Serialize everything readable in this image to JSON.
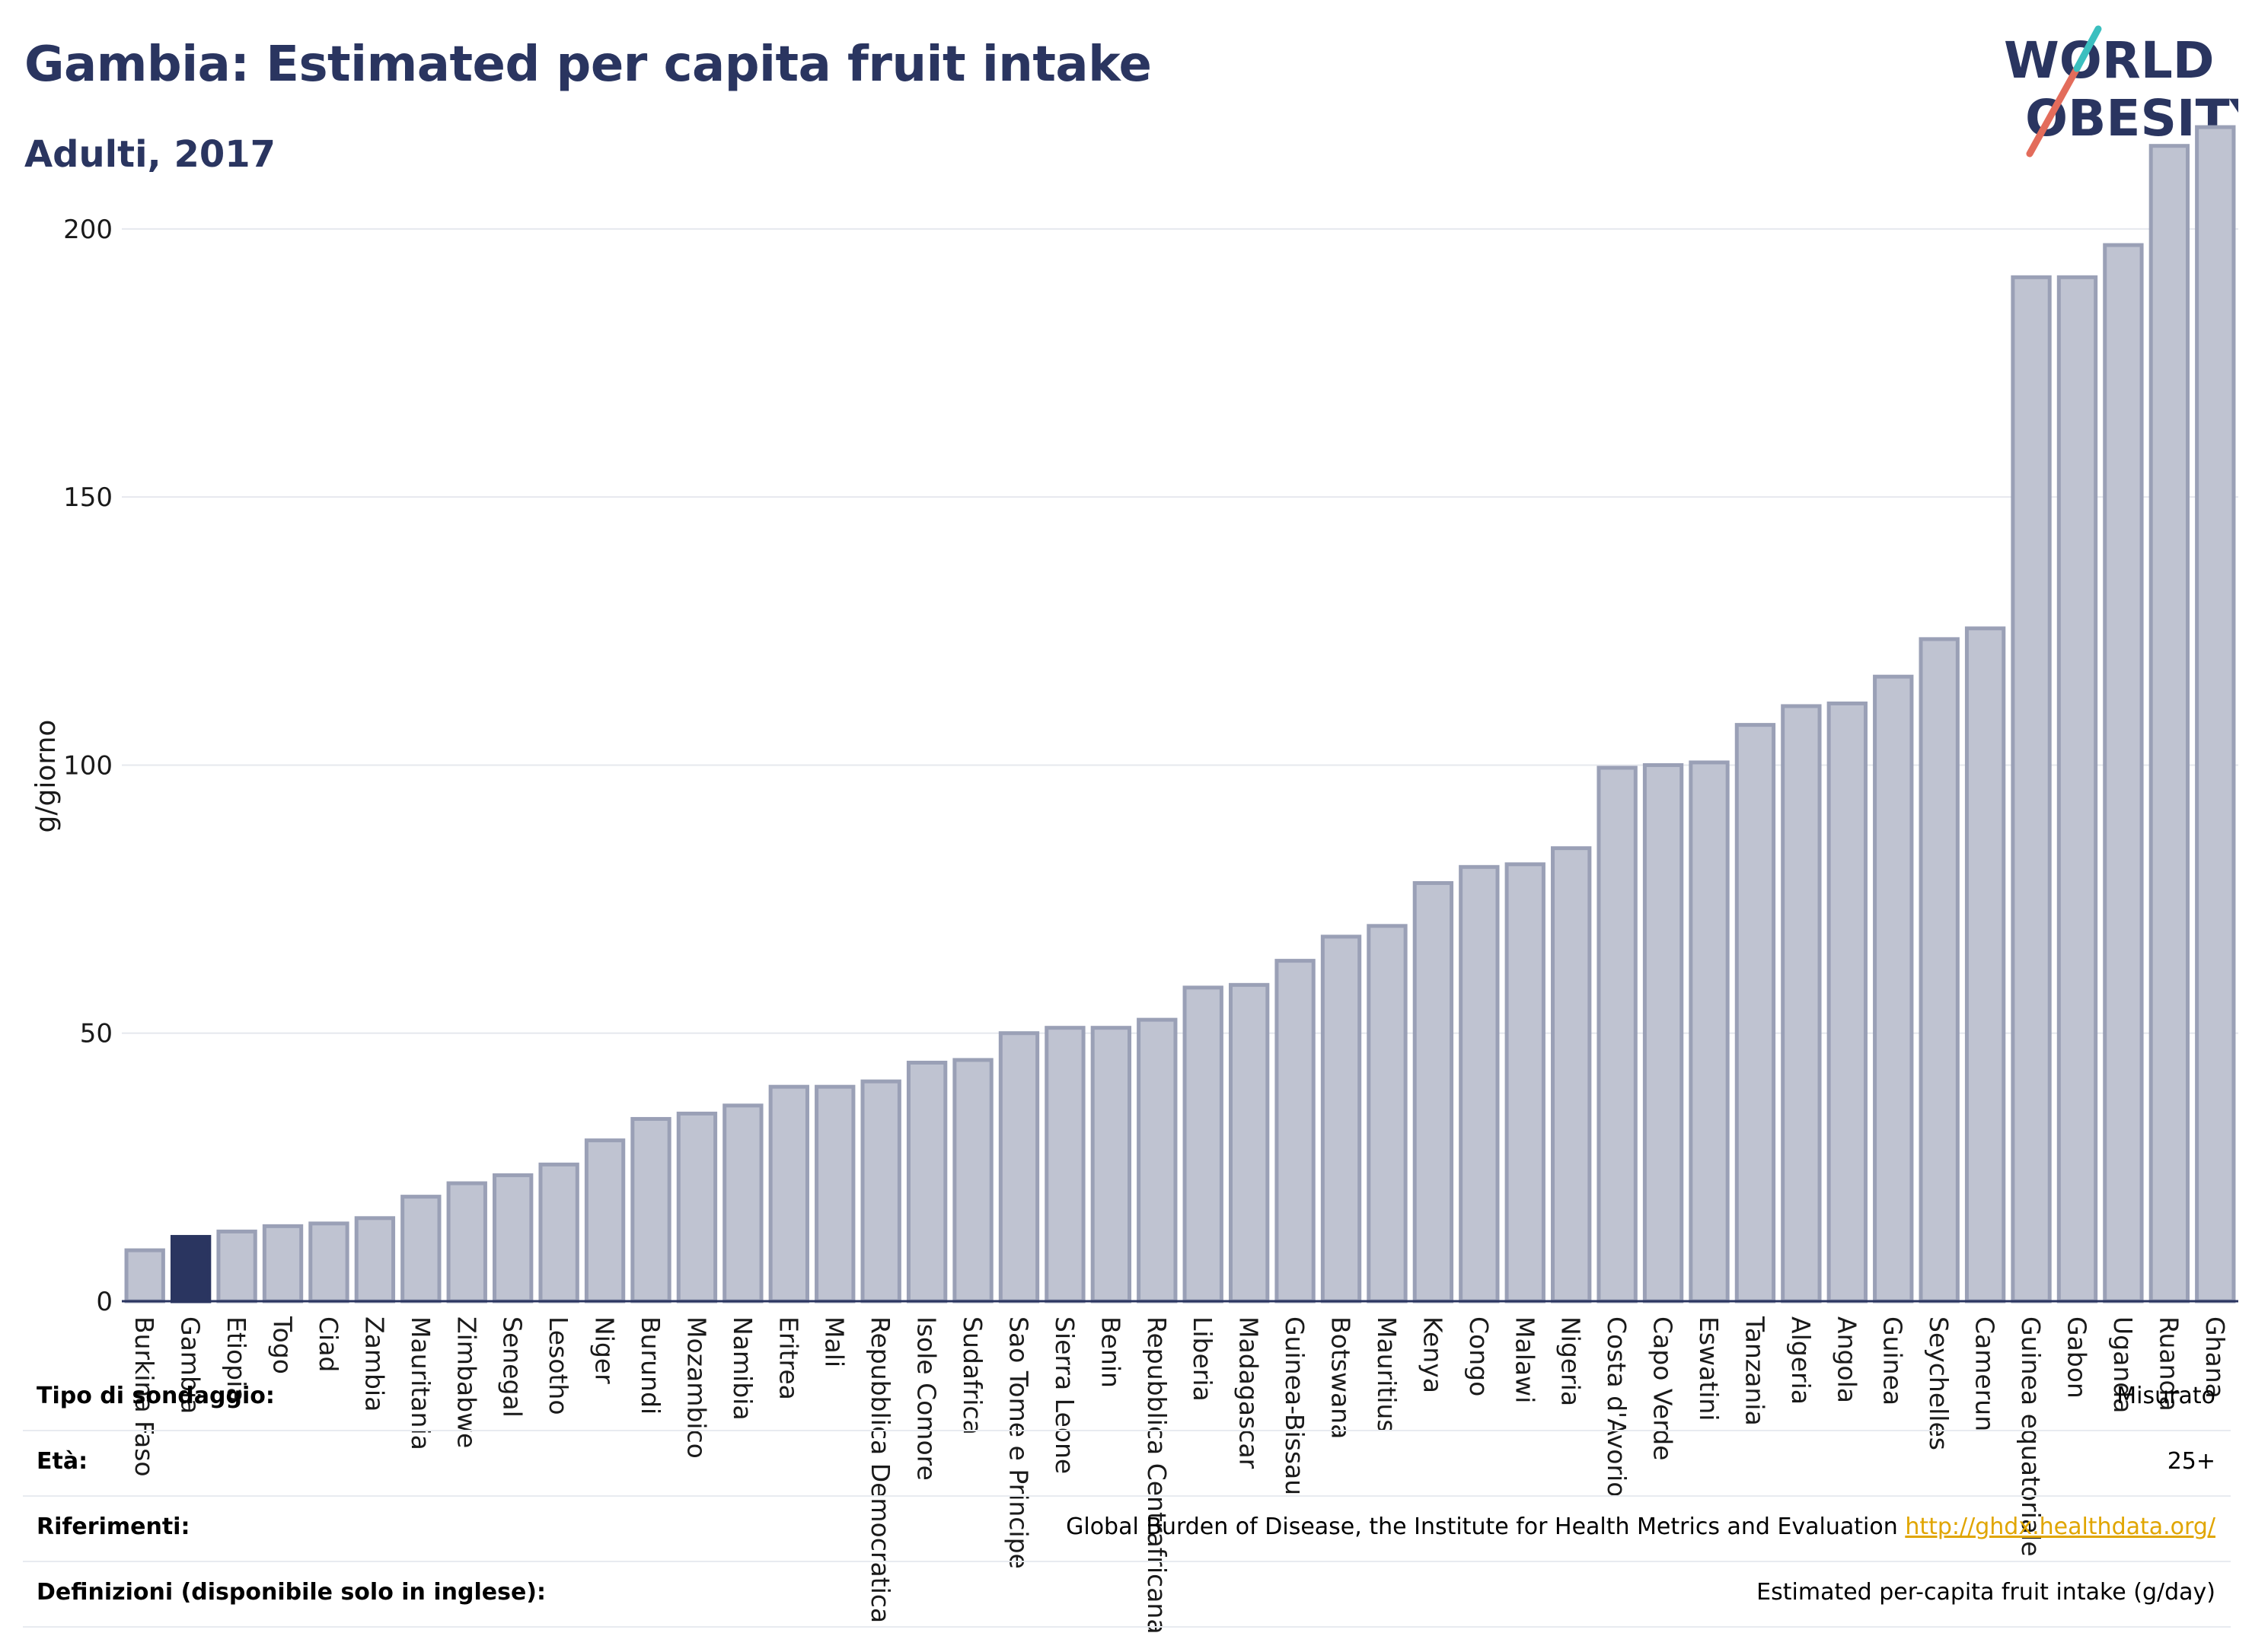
{
  "header": {
    "title": "Gambia: Estimated per capita fruit intake",
    "subtitle": "Adulti, 2017"
  },
  "logo": {
    "line1": "WORLD",
    "line2": "OBESITY",
    "colors": [
      "#2a3560",
      "#e36c5b",
      "#3bbfbf"
    ]
  },
  "colors": {
    "bar": "#bfc3d1",
    "bar_stroke": "#9aa0b6",
    "highlight": "#2a3560",
    "grid": "#e6e8ee",
    "axis": "#2a3560"
  },
  "chart_data": {
    "type": "bar",
    "ylabel": "g/giorno",
    "ylim": [
      0,
      220
    ],
    "yticks": [
      0,
      50,
      100,
      150,
      200
    ],
    "grid": true,
    "highlight": "Gambia",
    "categories": [
      "Burkina Faso",
      "Gambia",
      "Etiopia",
      "Togo",
      "Ciad",
      "Zambia",
      "Mauritania",
      "Zimbabwe",
      "Senegal",
      "Lesotho",
      "Niger",
      "Burundi",
      "Mozambico",
      "Namibia",
      "Eritrea",
      "Mali",
      "Repubblica Democratica",
      "Isole Comore",
      "Sudafrica",
      "Sao Tome e Principe",
      "Sierra Leone",
      "Benin",
      "Repubblica Centrafricana",
      "Liberia",
      "Madagascar",
      "Guinea-Bissau",
      "Botswana",
      "Mauritius",
      "Kenya",
      "Congo",
      "Malawi",
      "Nigeria",
      "Costa d'Avorio",
      "Capo Verde",
      "Eswatini",
      "Tanzania",
      "Algeria",
      "Angola",
      "Guinea",
      "Seychelles",
      "Camerun",
      "Guinea equatoriale",
      "Gabon",
      "Uganda",
      "Ruanda",
      "Ghana"
    ],
    "values": [
      9.5,
      12,
      13,
      14,
      14.5,
      15.5,
      19.5,
      22,
      23.5,
      25.5,
      30,
      34,
      35,
      36.5,
      40,
      40,
      41,
      44.5,
      45,
      50,
      51,
      51,
      52.5,
      58.5,
      59,
      63.5,
      68,
      70,
      78,
      81,
      81.5,
      84.5,
      99.5,
      100,
      100.5,
      107.5,
      111,
      111.5,
      116.5,
      123.5,
      125.5,
      191,
      191,
      197,
      215.5,
      219
    ]
  },
  "info": {
    "rows": [
      {
        "key": "Tipo di sondaggio:",
        "value": "Misurato"
      },
      {
        "key": "Età:",
        "value": "25+"
      },
      {
        "key": "Riferimenti:",
        "value": "Global Burden of Disease, the Institute for Health Metrics and Evaluation",
        "link": "http://ghdx.healthdata.org/"
      },
      {
        "key": "Definizioni (disponibile solo in inglese):",
        "value": "Estimated per-capita fruit intake (g/day)"
      }
    ]
  }
}
